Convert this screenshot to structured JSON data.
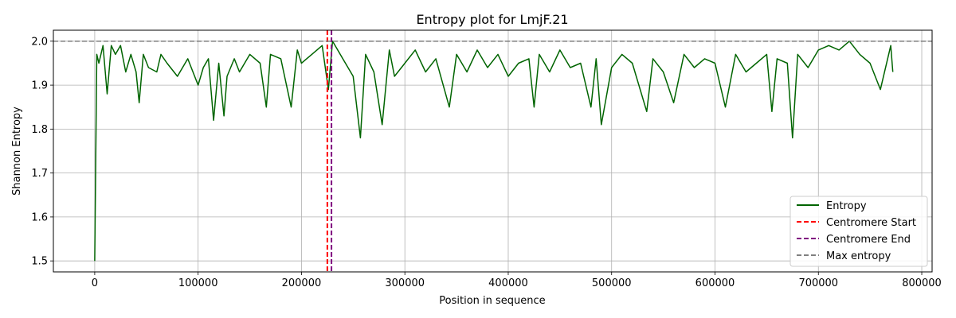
{
  "chart_data": {
    "type": "line",
    "title": "Entropy plot for LmjF.21",
    "xlabel": "Position in sequence",
    "ylabel": "Shannon Entropy",
    "xlim": [
      -40000,
      810000
    ],
    "ylim": [
      1.475,
      2.025
    ],
    "x_ticks": [
      0,
      100000,
      200000,
      300000,
      400000,
      500000,
      600000,
      700000,
      800000
    ],
    "y_ticks": [
      1.5,
      1.6,
      1.7,
      1.8,
      1.9,
      2.0
    ],
    "x_tick_labels": [
      "0",
      "100000",
      "200000",
      "300000",
      "400000",
      "500000",
      "600000",
      "700000",
      "800000"
    ],
    "y_tick_labels": [
      "1.5",
      "1.6",
      "1.7",
      "1.8",
      "1.9",
      "2.0"
    ],
    "grid": true,
    "legend_position": "lower-right",
    "series": [
      {
        "name": "Entropy",
        "color": "#006400",
        "style": "solid",
        "x": [
          0,
          2000,
          4000,
          8000,
          12000,
          16000,
          20000,
          25000,
          30000,
          35000,
          40000,
          43000,
          47000,
          52000,
          60000,
          64000,
          70000,
          80000,
          90000,
          100000,
          105000,
          110000,
          115000,
          120000,
          125000,
          128000,
          135000,
          140000,
          150000,
          160000,
          166000,
          170000,
          180000,
          190000,
          196000,
          200000,
          210000,
          220000,
          226000,
          230000,
          240000,
          250000,
          257000,
          262000,
          270000,
          278000,
          285000,
          290000,
          300000,
          310000,
          320000,
          330000,
          343000,
          350000,
          360000,
          370000,
          380000,
          390000,
          400000,
          410000,
          420000,
          425000,
          430000,
          440000,
          450000,
          460000,
          470000,
          480000,
          485000,
          490000,
          500000,
          510000,
          520000,
          534000,
          540000,
          550000,
          560000,
          570000,
          580000,
          590000,
          600000,
          610000,
          620000,
          630000,
          640000,
          650000,
          655000,
          660000,
          670000,
          675000,
          680000,
          690000,
          700000,
          710000,
          720000,
          730000,
          740000,
          750000,
          760000,
          770000,
          772000
        ],
        "y": [
          1.5,
          1.97,
          1.95,
          1.99,
          1.88,
          1.99,
          1.97,
          1.99,
          1.93,
          1.97,
          1.93,
          1.86,
          1.97,
          1.94,
          1.93,
          1.97,
          1.95,
          1.92,
          1.96,
          1.9,
          1.94,
          1.96,
          1.82,
          1.95,
          1.83,
          1.92,
          1.96,
          1.93,
          1.97,
          1.95,
          1.85,
          1.97,
          1.96,
          1.85,
          1.98,
          1.95,
          1.97,
          1.99,
          1.89,
          2.0,
          1.96,
          1.92,
          1.78,
          1.97,
          1.93,
          1.81,
          1.98,
          1.92,
          1.95,
          1.98,
          1.93,
          1.96,
          1.85,
          1.97,
          1.93,
          1.98,
          1.94,
          1.97,
          1.92,
          1.95,
          1.96,
          1.85,
          1.97,
          1.93,
          1.98,
          1.94,
          1.95,
          1.85,
          1.96,
          1.81,
          1.94,
          1.97,
          1.95,
          1.84,
          1.96,
          1.93,
          1.86,
          1.97,
          1.94,
          1.96,
          1.95,
          1.85,
          1.97,
          1.93,
          1.95,
          1.97,
          1.84,
          1.96,
          1.95,
          1.78,
          1.97,
          1.94,
          1.98,
          1.99,
          1.98,
          2.0,
          1.97,
          1.95,
          1.89,
          1.99,
          1.93
        ]
      },
      {
        "name": "Centromere Start",
        "color": "#ff0000",
        "style": "dashed",
        "x_value": 225000
      },
      {
        "name": "Centromere End",
        "color": "#800080",
        "style": "dashed",
        "x_value": 229000
      },
      {
        "name": "Max entropy",
        "color": "#808080",
        "style": "dashed",
        "y_value": 2.0
      }
    ]
  }
}
